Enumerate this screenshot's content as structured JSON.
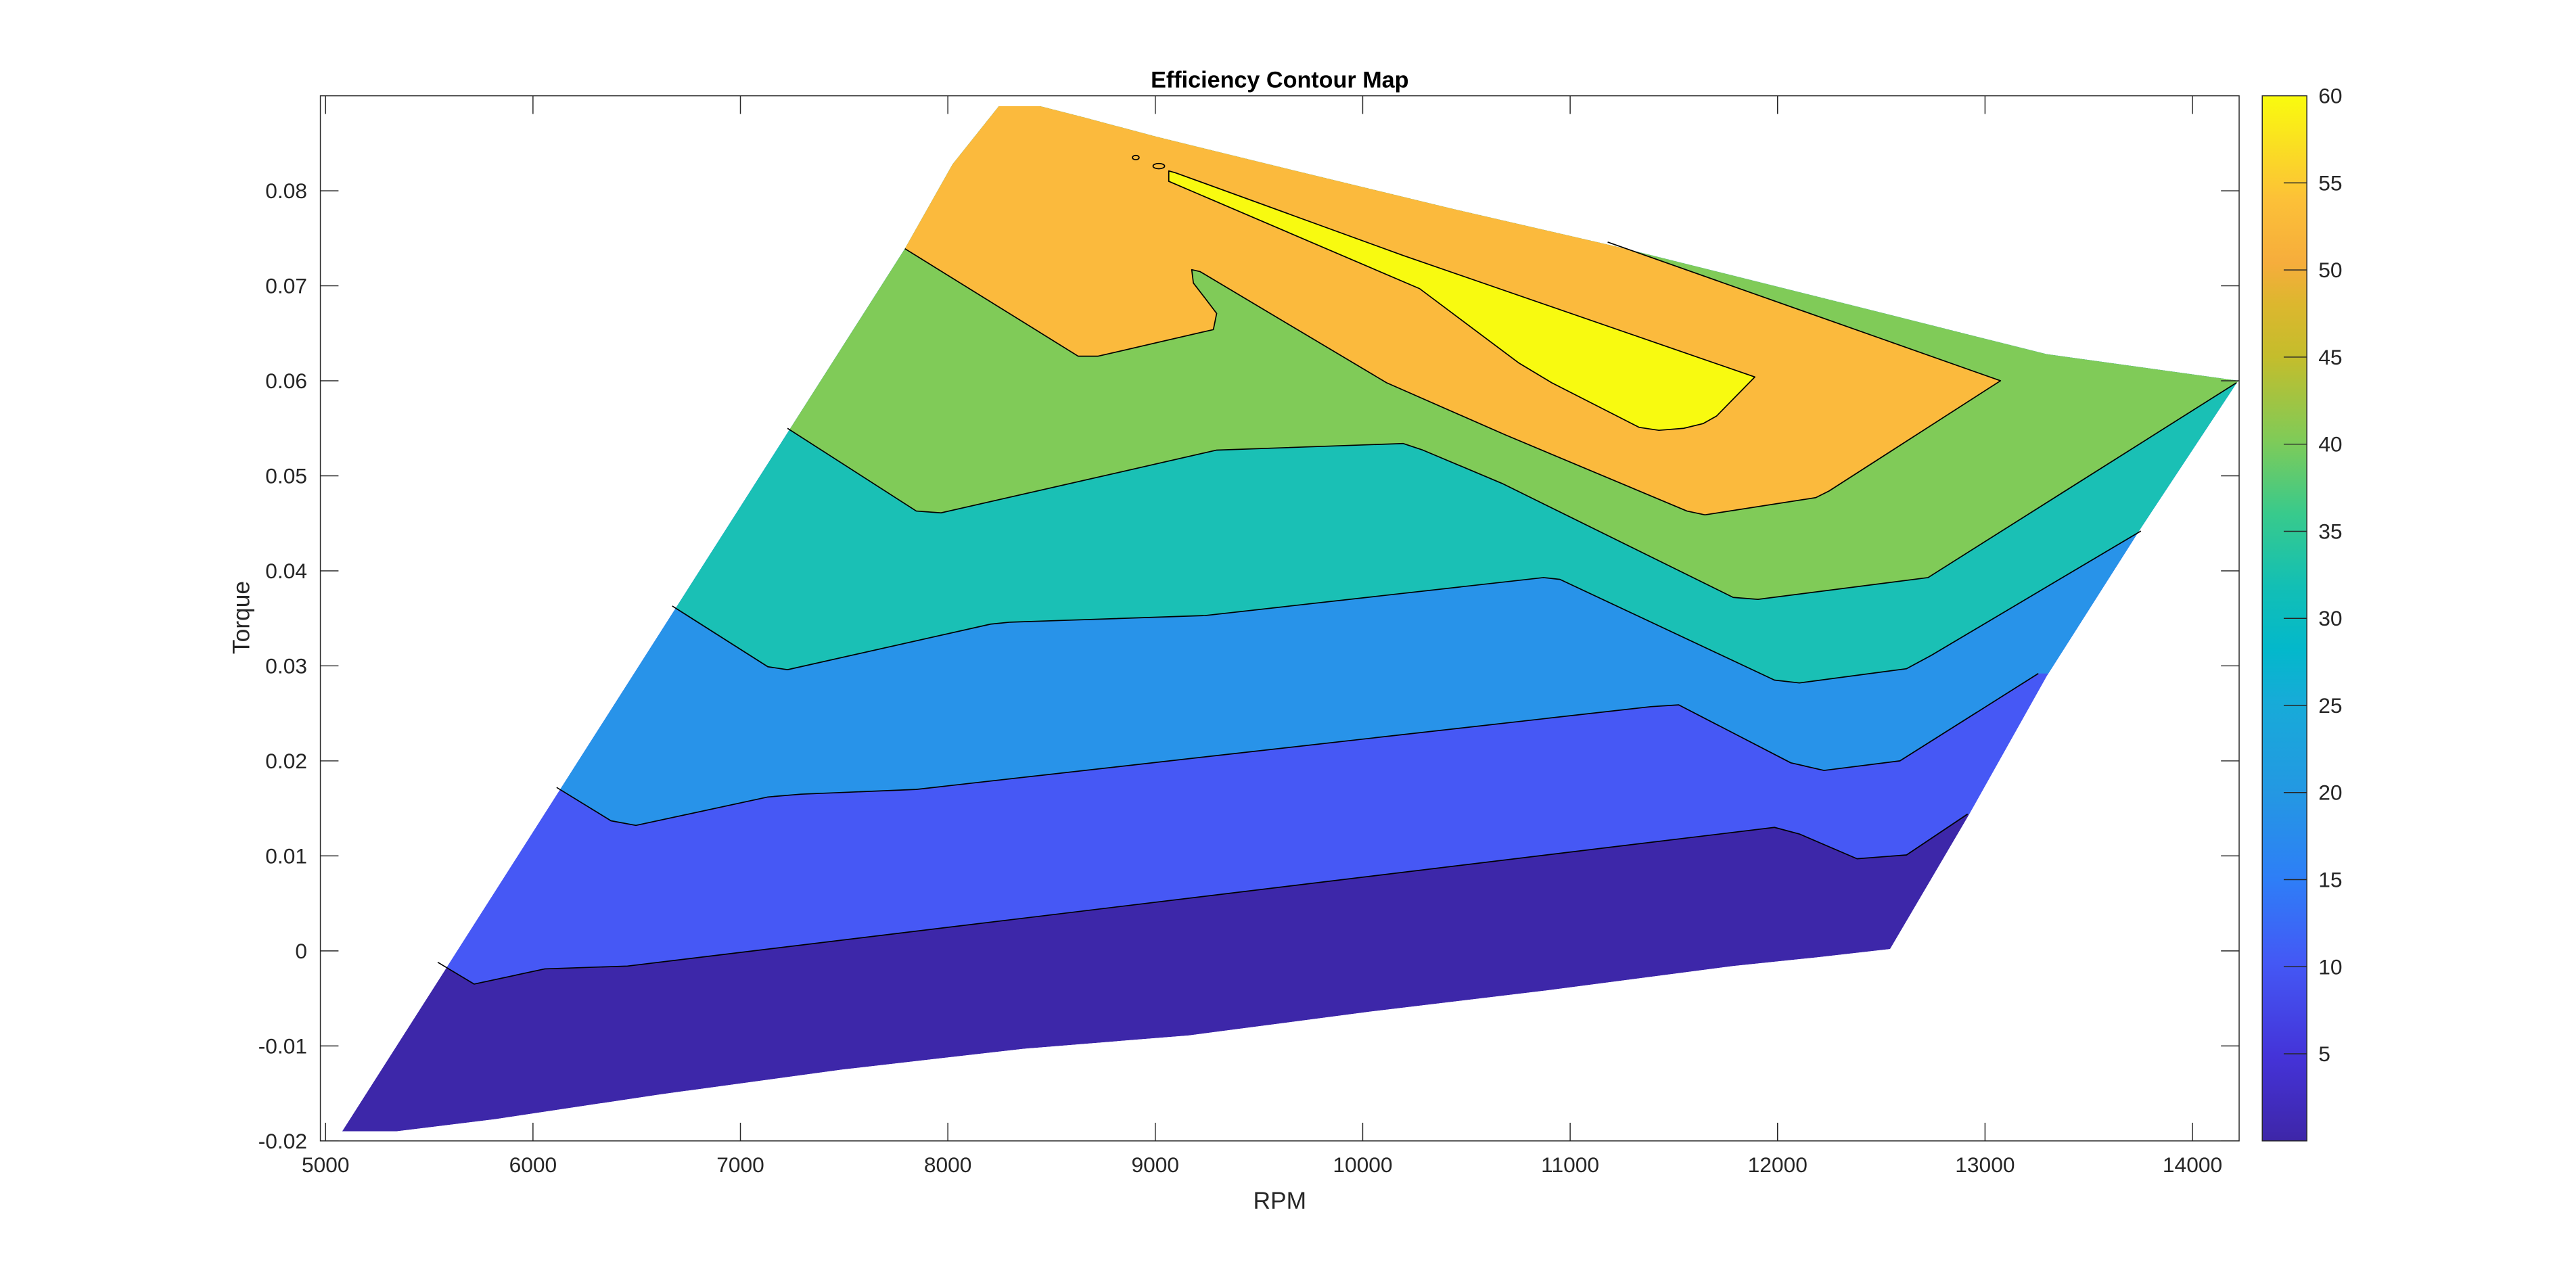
{
  "chart_data": {
    "type": "contourf",
    "title": "Efficiency Contour Map",
    "xlabel": "RPM",
    "ylabel": "Torque",
    "xlim": [
      4975,
      14225
    ],
    "ylim": [
      -0.02,
      0.09
    ],
    "xticks": [
      5000,
      6000,
      7000,
      8000,
      9000,
      10000,
      11000,
      12000,
      13000,
      14000
    ],
    "xtick_labels": [
      "5000",
      "6000",
      "7000",
      "8000",
      "9000",
      "10000",
      "11000",
      "12000",
      "13000",
      "14000"
    ],
    "yticks": [
      -0.02,
      -0.01,
      0,
      0.01,
      0.02,
      0.03,
      0.04,
      0.05,
      0.06,
      0.07,
      0.08
    ],
    "ytick_labels": [
      "-0.02",
      "-0.01",
      "0",
      "0.01",
      "0.02",
      "0.03",
      "0.04",
      "0.05",
      "0.06",
      "0.07",
      "0.08"
    ],
    "grid": false,
    "colormap": "parula",
    "colorbar": {
      "range": [
        0,
        60
      ],
      "ticks": [
        5,
        10,
        15,
        20,
        25,
        30,
        35,
        40,
        45,
        50,
        55,
        60
      ],
      "tick_labels": [
        "5",
        "10",
        "15",
        "20",
        "25",
        "30",
        "35",
        "40",
        "45",
        "50",
        "55",
        "60"
      ],
      "location": "right"
    },
    "data_region_outline": [
      [
        5080,
        -0.019
      ],
      [
        7793,
        0.0739
      ],
      [
        8023,
        0.0828
      ],
      [
        8246,
        0.0889
      ],
      [
        8445,
        0.0889
      ],
      [
        8660,
        0.0877
      ],
      [
        9002,
        0.0857
      ],
      [
        9638,
        0.0823
      ],
      [
        10434,
        0.0781
      ],
      [
        11229,
        0.0741
      ],
      [
        12184,
        0.0689
      ],
      [
        13297,
        0.0628
      ],
      [
        14220,
        0.06
      ],
      [
        13751,
        0.0445
      ],
      [
        13297,
        0.0289
      ],
      [
        12916,
        0.0141
      ],
      [
        12542,
        0.0002
      ],
      [
        12184,
        -0.0007
      ],
      [
        11786,
        -0.0016
      ],
      [
        10871,
        -0.0042
      ],
      [
        10036,
        -0.0064
      ],
      [
        9161,
        -0.0089
      ],
      [
        8365,
        -0.0103
      ],
      [
        7490,
        -0.0125
      ],
      [
        6615,
        -0.0151
      ],
      [
        5819,
        -0.0177
      ],
      [
        5342,
        -0.019
      ]
    ],
    "band_colors": [
      "#3d27a9",
      "#4658f5",
      "#2893e9",
      "#1ac0b5",
      "#80cb58",
      "#fbba3d",
      "#f8fa10"
    ],
    "contour_lines": [
      [
        [
          5541,
          -0.0012
        ],
        [
          5716,
          -0.0035
        ],
        [
          6058,
          -0.0019
        ],
        [
          6456,
          -0.0016
        ],
        [
          11985,
          0.013
        ],
        [
          12105,
          0.0123
        ],
        [
          12383,
          0.0097
        ],
        [
          12622,
          0.0101
        ],
        [
          12916,
          0.0144
        ]
      ],
      [
        [
          6114,
          0.0172
        ],
        [
          6376,
          0.0137
        ],
        [
          6496,
          0.0132
        ],
        [
          7132,
          0.0162
        ],
        [
          7291,
          0.0165
        ],
        [
          7848,
          0.017
        ],
        [
          11388,
          0.0257
        ],
        [
          11523,
          0.0259
        ],
        [
          12064,
          0.0198
        ],
        [
          12224,
          0.019
        ],
        [
          12590,
          0.02
        ],
        [
          13257,
          0.0292
        ]
      ],
      [
        [
          6671,
          0.0363
        ],
        [
          7132,
          0.0299
        ],
        [
          7227,
          0.0296
        ],
        [
          8206,
          0.0344
        ],
        [
          8301,
          0.0346
        ],
        [
          9240,
          0.0353
        ],
        [
          10871,
          0.0393
        ],
        [
          10951,
          0.0391
        ],
        [
          11985,
          0.0285
        ],
        [
          12105,
          0.0282
        ],
        [
          12622,
          0.0297
        ],
        [
          12741,
          0.0311
        ],
        [
          13751,
          0.0442
        ]
      ],
      [
        [
          7227,
          0.055
        ],
        [
          7848,
          0.0463
        ],
        [
          7967,
          0.0461
        ],
        [
          9296,
          0.0527
        ],
        [
          10195,
          0.0534
        ],
        [
          10290,
          0.0527
        ],
        [
          10672,
          0.0492
        ],
        [
          11786,
          0.0372
        ],
        [
          11905,
          0.037
        ],
        [
          12725,
          0.0393
        ],
        [
          14212,
          0.0598
        ]
      ],
      [
        [
          7793,
          0.0739
        ],
        [
          8628,
          0.0626
        ],
        [
          8724,
          0.0626
        ],
        [
          9280,
          0.0654
        ],
        [
          9296,
          0.0671
        ],
        [
          9240,
          0.0687
        ],
        [
          9184,
          0.0703
        ],
        [
          9176,
          0.0717
        ],
        [
          9216,
          0.0715
        ],
        [
          10115,
          0.0598
        ],
        [
          10688,
          0.0543
        ],
        [
          11563,
          0.0463
        ],
        [
          11650,
          0.0459
        ],
        [
          12184,
          0.0477
        ],
        [
          12248,
          0.0484
        ],
        [
          13075,
          0.06
        ],
        [
          11181,
          0.0746
        ]
      ]
    ],
    "peak_region": [
      [
        9065,
        0.0821
      ],
      [
        9097,
        0.0819
      ],
      [
        10195,
        0.0732
      ],
      [
        11890,
        0.0604
      ],
      [
        11706,
        0.0563
      ],
      [
        11642,
        0.0555
      ],
      [
        11547,
        0.055
      ],
      [
        11428,
        0.0548
      ],
      [
        11332,
        0.0551
      ],
      [
        10911,
        0.0598
      ],
      [
        10751,
        0.0619
      ],
      [
        10274,
        0.0697
      ],
      [
        9065,
        0.081
      ]
    ],
    "islands": [
      [
        8906,
        0.0835
      ],
      [
        9017,
        0.0826
      ]
    ]
  }
}
